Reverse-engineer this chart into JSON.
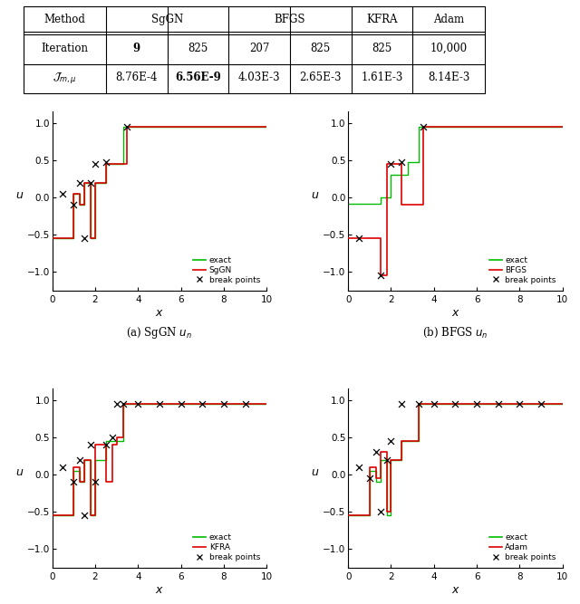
{
  "exact_color": "#00bb00",
  "approx_color": "#dd0000",
  "break_color": "#000000",
  "xlim": [
    0,
    10
  ],
  "ylim": [
    -1.25,
    1.15
  ],
  "yticks": [
    -1,
    -0.5,
    0,
    0.5,
    1
  ],
  "xticks": [
    0,
    2,
    4,
    6,
    8,
    10
  ],
  "subplot_labels": [
    "(a) SgGN $u_n$",
    "(b) BFGS $u_n$",
    "(c) KFRA $u_n$",
    "(d) Adam $u_n$"
  ],
  "method_names": [
    "SgGN",
    "BFGS",
    "KFRA",
    "Adam"
  ],
  "exact_bps": [
    0.5,
    1.0,
    1.3,
    1.5,
    1.8,
    2.0,
    2.5,
    3.3
  ],
  "exact_vals": [
    -0.55,
    0.05,
    -0.1,
    0.2,
    -0.55,
    0.2,
    0.45,
    0.95
  ],
  "sggn_bps": [
    0.5,
    1.0,
    1.3,
    1.5,
    1.8,
    2.0,
    2.5,
    3.5
  ],
  "sggn_vals": [
    -0.55,
    0.05,
    -0.1,
    0.2,
    -0.55,
    0.2,
    0.45,
    0.95
  ],
  "sggn_bkx": [
    0.5,
    1.0,
    1.3,
    1.5,
    1.8,
    2.0,
    2.5,
    3.5
  ],
  "sggn_bky": [
    0.05,
    -0.1,
    0.2,
    -0.55,
    0.2,
    0.45,
    0.47,
    0.95
  ],
  "bfgs_bps": [
    1.0,
    1.5,
    1.8,
    2.5,
    3.5
  ],
  "bfgs_vals": [
    -0.55,
    -1.05,
    0.45,
    -0.1,
    0.95
  ],
  "bfgs_bkx": [
    0.5,
    1.5,
    2.0,
    2.5,
    3.5
  ],
  "bfgs_bky": [
    -0.55,
    -1.05,
    0.45,
    0.47,
    0.95
  ],
  "bfgs_exact_bps": [
    0.8,
    1.5,
    2.0,
    2.8,
    3.3
  ],
  "bfgs_exact_vals": [
    -0.08,
    0.0,
    0.3,
    0.48,
    0.95
  ],
  "kfra_bps": [
    0.5,
    1.0,
    1.3,
    1.5,
    1.8,
    2.0,
    2.5,
    2.8,
    3.0,
    3.3,
    4.0,
    5.0,
    6.0,
    7.0,
    8.0,
    9.0
  ],
  "kfra_vals": [
    -0.55,
    0.1,
    -0.1,
    0.2,
    -0.55,
    0.4,
    -0.1,
    0.4,
    0.5,
    0.95,
    0.95,
    0.95,
    0.95,
    0.95,
    0.95,
    0.95
  ],
  "kfra_bkx": [
    0.5,
    1.0,
    1.3,
    1.5,
    1.8,
    2.0,
    2.5,
    2.8,
    3.0,
    3.3,
    4.0,
    5.0,
    6.0,
    7.0,
    8.0,
    9.0
  ],
  "kfra_bky": [
    0.1,
    -0.1,
    0.2,
    -0.55,
    0.4,
    -0.1,
    0.4,
    0.5,
    0.95,
    0.95,
    0.95,
    0.95,
    0.95,
    0.95,
    0.95,
    0.95
  ],
  "adam_bps": [
    0.5,
    1.0,
    1.3,
    1.5,
    1.8,
    2.0,
    2.5,
    3.3,
    4.0,
    5.0,
    6.0,
    7.0,
    8.0,
    9.0
  ],
  "adam_vals": [
    -0.55,
    0.1,
    -0.05,
    0.3,
    -0.5,
    0.2,
    0.45,
    0.95,
    0.95,
    0.95,
    0.95,
    0.95,
    0.95,
    0.95
  ],
  "adam_bkx": [
    0.5,
    1.0,
    1.3,
    1.5,
    1.8,
    2.0,
    2.5,
    3.3,
    4.0,
    5.0,
    6.0,
    7.0,
    8.0,
    9.0
  ],
  "adam_bky": [
    0.1,
    -0.05,
    0.3,
    -0.5,
    0.2,
    0.45,
    0.95,
    0.95,
    0.95,
    0.95,
    0.95,
    0.95,
    0.95,
    0.95
  ]
}
